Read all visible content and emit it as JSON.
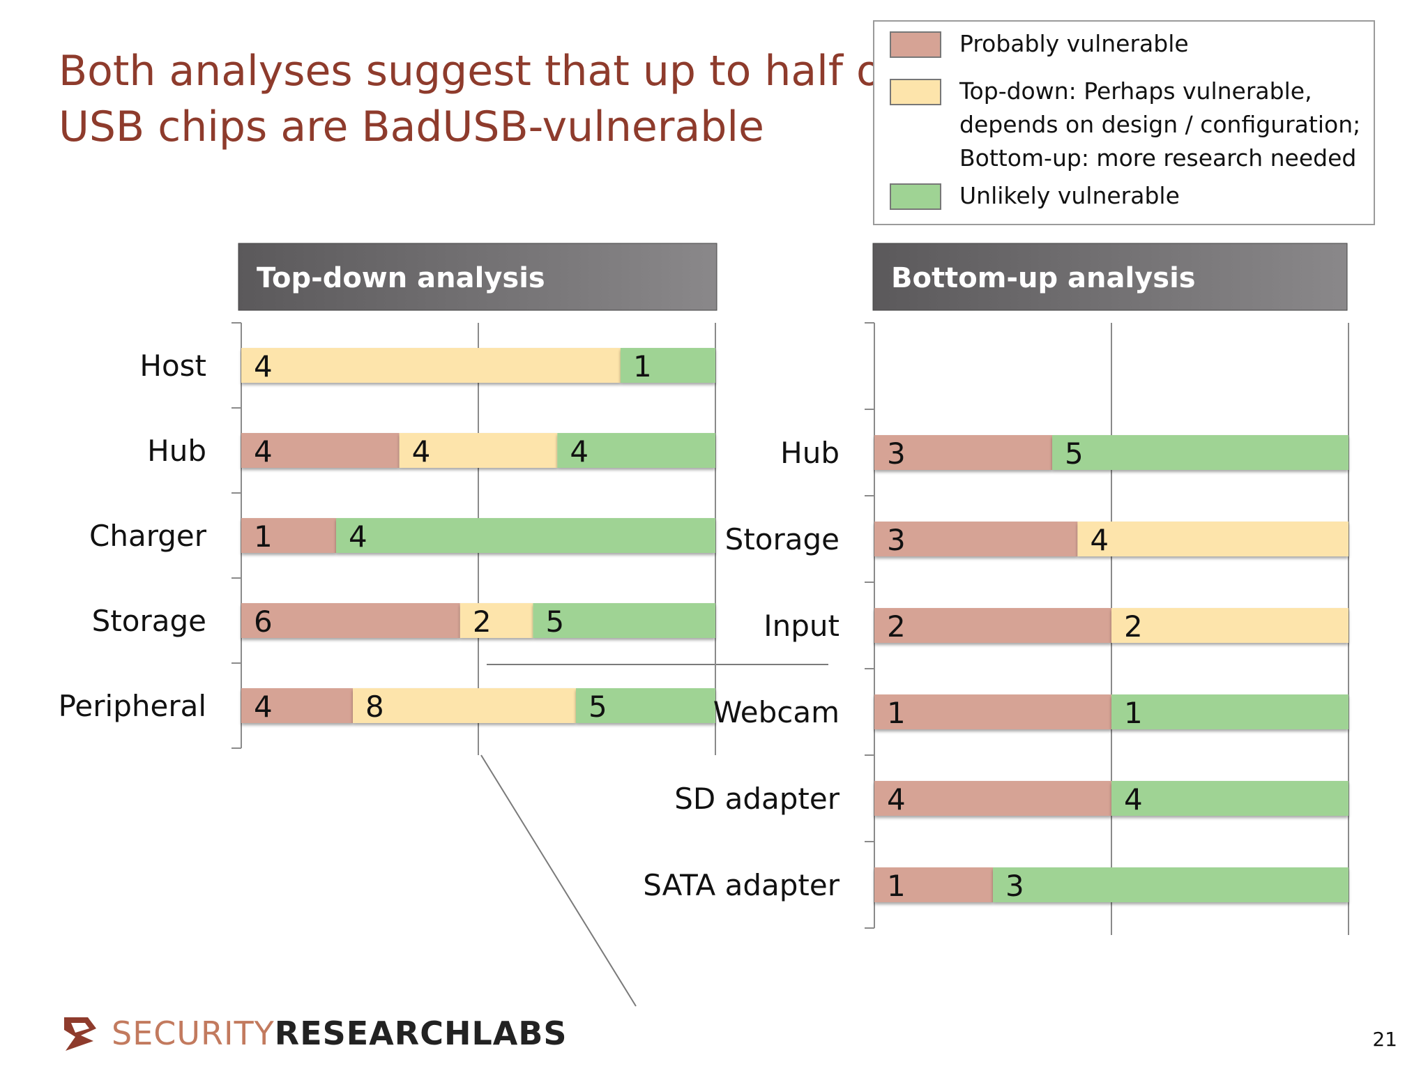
{
  "slide": {
    "title_lines": [
      "Both analyses suggest that up to half of",
      "USB chips are BadUSB-vulnerable"
    ],
    "page_number": "21"
  },
  "legend": {
    "items": [
      {
        "lines": [
          "Probably vulnerable"
        ],
        "color": "#d6a395"
      },
      {
        "lines": [
          "Top-down: Perhaps vulnerable,",
          "depends on design / configuration;",
          "Bottom-up: more research needed"
        ],
        "color": "#fde4ab"
      },
      {
        "lines": [
          "Unlikely vulnerable"
        ],
        "color": "#9fd394"
      }
    ]
  },
  "logo": {
    "word1": "SECURITY",
    "word2": "RESEARCHLABS",
    "mark_color": "#8e3b2c"
  },
  "colors": {
    "probably": "#d6a395",
    "perhaps": "#fde4ab",
    "unlikely": "#9fd394",
    "header_dark": "#5b595b",
    "header_light": "#8a888a",
    "axis": "#8a8a8a"
  },
  "chart_data": [
    {
      "type": "bar",
      "orientation": "horizontal",
      "stacked": "100%",
      "title": "Top-down analysis",
      "categories": [
        "Host",
        "Hub",
        "Charger",
        "Storage",
        "Peripheral"
      ],
      "series": [
        {
          "key": "probably",
          "values": [
            null,
            4,
            1,
            6,
            4
          ]
        },
        {
          "key": "perhaps",
          "values": [
            4,
            4,
            null,
            2,
            8
          ]
        },
        {
          "key": "unlikely",
          "values": [
            1,
            4,
            4,
            5,
            5
          ]
        }
      ],
      "grid": true
    },
    {
      "type": "bar",
      "orientation": "horizontal",
      "stacked": "100%",
      "title": "Bottom-up analysis",
      "categories": [
        "Hub",
        "Storage",
        "Input",
        "Webcam",
        "SD adapter",
        "SATA adapter"
      ],
      "series": [
        {
          "key": "probably",
          "values": [
            3,
            3,
            2,
            1,
            4,
            1
          ]
        },
        {
          "key": "perhaps",
          "values": [
            null,
            4,
            2,
            null,
            null,
            null
          ]
        },
        {
          "key": "unlikely",
          "values": [
            5,
            null,
            null,
            1,
            4,
            3
          ]
        }
      ],
      "grid": true
    }
  ]
}
